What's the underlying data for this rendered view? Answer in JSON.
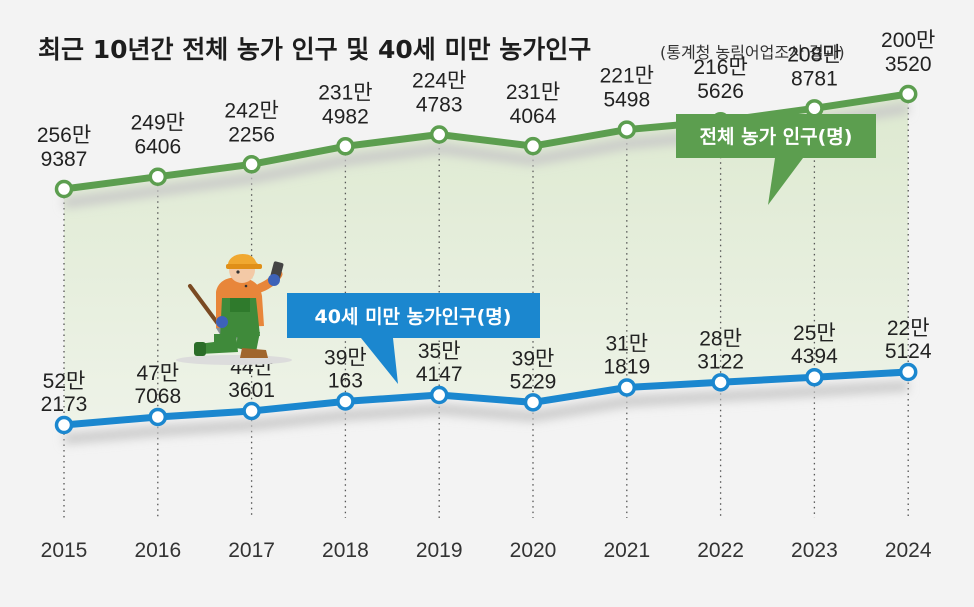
{
  "title": "최근 10년간 전체 농가 인구 및 40세 미만 농가인구",
  "subtitle": "(통계청 농림어업조사 결과)",
  "colors": {
    "total": "#5c9e4f",
    "young": "#1b87cf",
    "fill": "#e6efdc",
    "background": "#f3f3f3"
  },
  "chart_data": {
    "type": "line",
    "x": [
      "2015",
      "2016",
      "2017",
      "2018",
      "2019",
      "2020",
      "2021",
      "2022",
      "2023",
      "2024"
    ],
    "series": [
      {
        "name": "전체 농가 인구(명)",
        "values": [
          2569387,
          2496406,
          2422256,
          2314982,
          2244783,
          2314064,
          2215498,
          2165626,
          2088781,
          2003520
        ],
        "labels_top": [
          "256만",
          "249만",
          "242만",
          "231만",
          "224만",
          "231만",
          "221만",
          "216만",
          "208만",
          "200만"
        ],
        "labels_bottom": [
          "9387",
          "6406",
          "2256",
          "4982",
          "4783",
          "4064",
          "5498",
          "5626",
          "8781",
          "3520"
        ]
      },
      {
        "name": "40세 미만 농가인구(명)",
        "values": [
          522173,
          477068,
          443601,
          390163,
          354147,
          395229,
          311819,
          283122,
          254394,
          225124
        ],
        "labels_top": [
          "52만",
          "47만",
          "44만",
          "39만",
          "35만",
          "39만",
          "31만",
          "28만",
          "25만",
          "22만"
        ],
        "labels_bottom": [
          "2173",
          "7068",
          "3601",
          "163",
          "4147",
          "5229",
          "1819",
          "3122",
          "4394",
          "5124"
        ]
      }
    ],
    "legend_position": "callouts",
    "grid": false
  }
}
